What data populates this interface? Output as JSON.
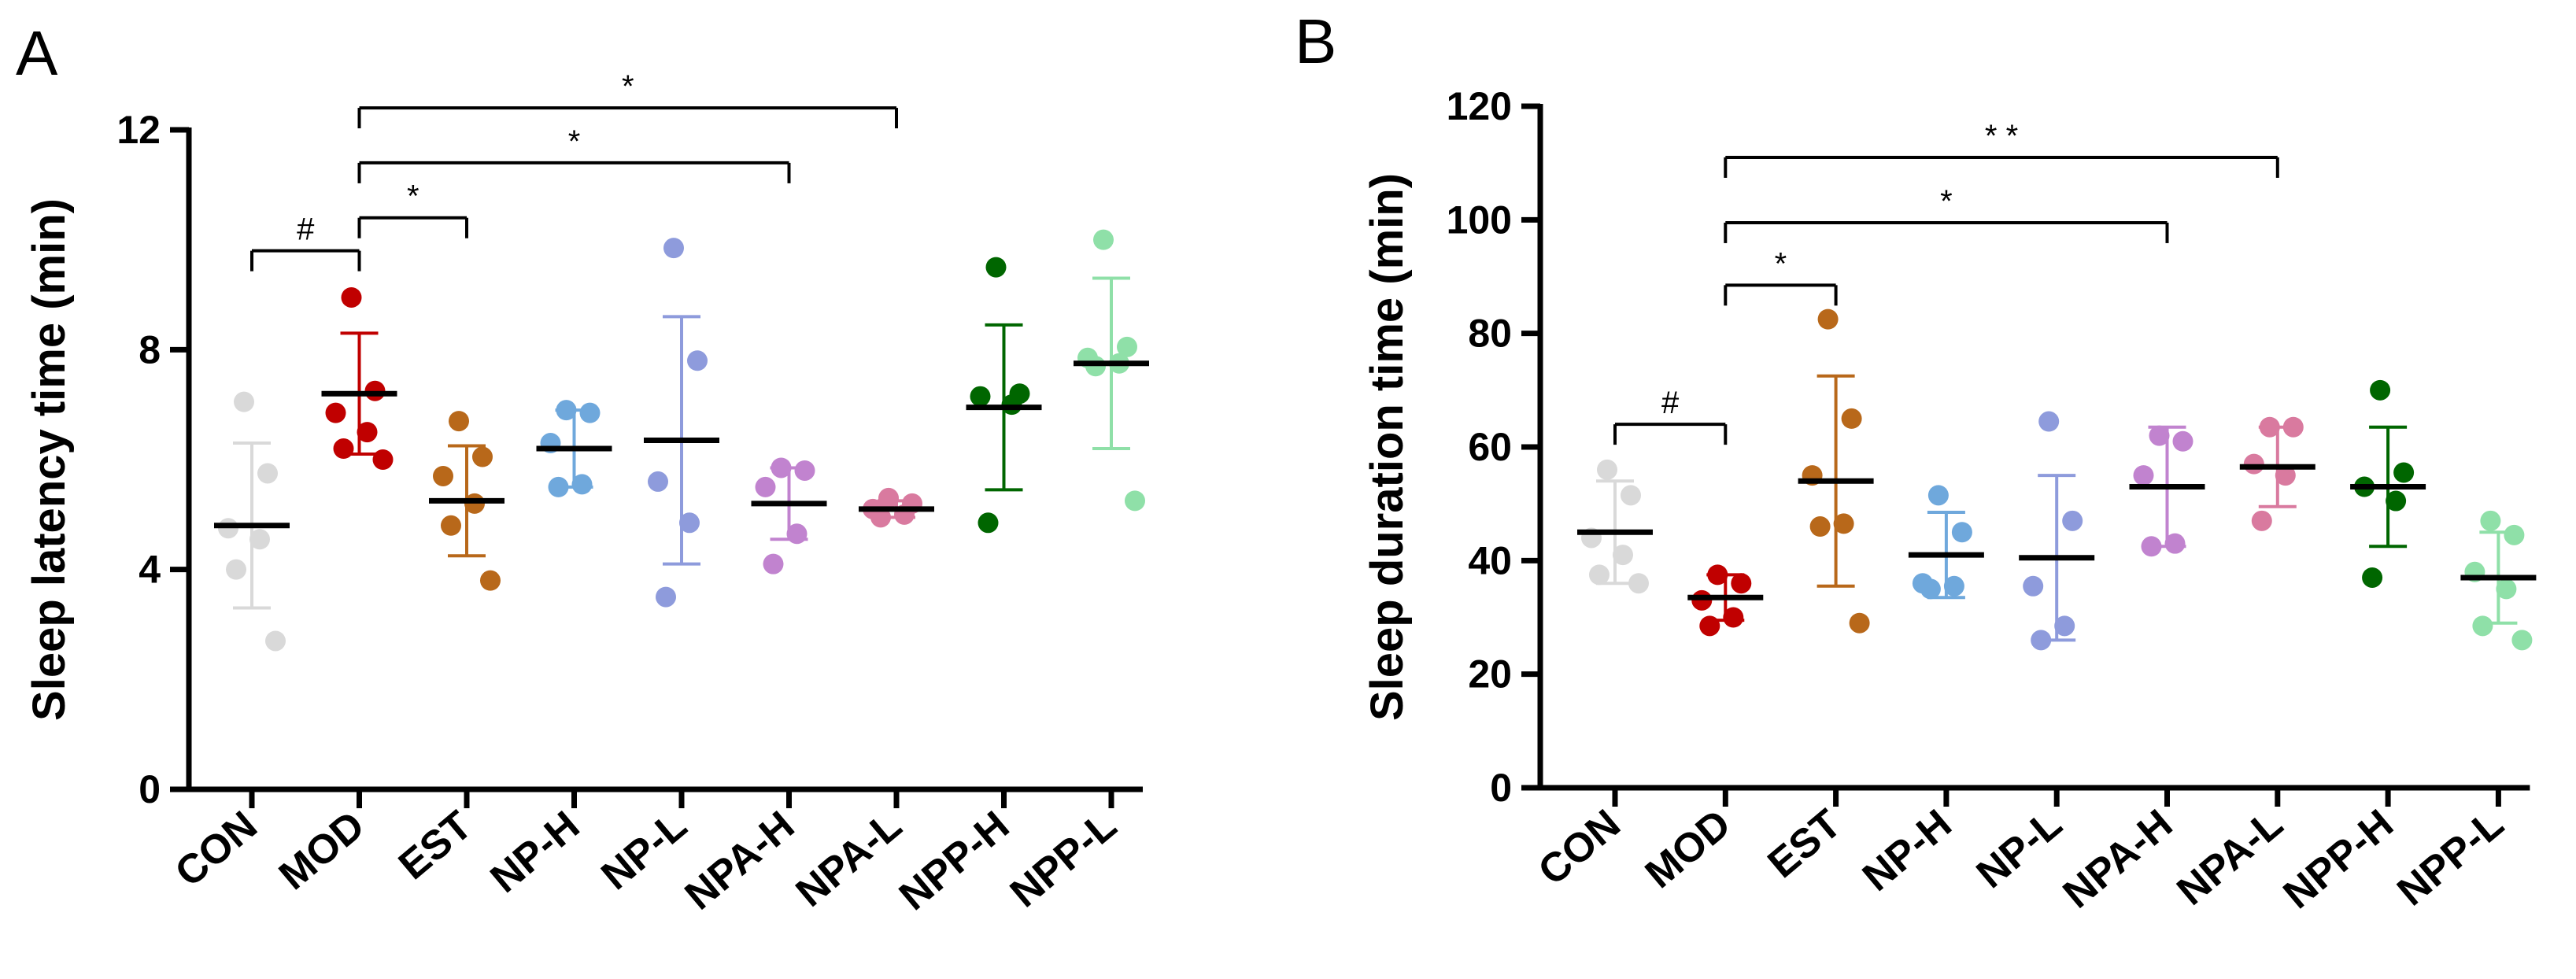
{
  "chart_data": [
    {
      "panel": "A",
      "type": "scatter",
      "ylabel": "Sleep latency time (min)",
      "ylim": [
        0,
        12
      ],
      "yticks": [
        0,
        4,
        8,
        12
      ],
      "categories": [
        "CON",
        "MOD",
        "EST",
        "NP-H",
        "NP-L",
        "NPA-H",
        "NPA-L",
        "NPP-H",
        "NPP-L"
      ],
      "colors": [
        "#d9d9d9",
        "#c00000",
        "#b8681a",
        "#6fa8dc",
        "#8e9bdc",
        "#c183cf",
        "#d97a9f",
        "#006600",
        "#8fe0a8"
      ],
      "groups": [
        {
          "mean": 4.8,
          "sd": 1.5,
          "points": [
            7.05,
            5.75,
            4.75,
            4.55,
            4.0,
            2.7
          ]
        },
        {
          "mean": 7.2,
          "sd": 1.1,
          "points": [
            8.95,
            7.25,
            6.85,
            6.5,
            6.2,
            6.0
          ]
        },
        {
          "mean": 5.25,
          "sd": 1.0,
          "points": [
            6.7,
            6.05,
            5.7,
            5.2,
            4.8,
            3.8
          ]
        },
        {
          "mean": 6.2,
          "sd": 0.7,
          "points": [
            6.9,
            6.85,
            6.3,
            5.55,
            5.5
          ]
        },
        {
          "mean": 6.35,
          "sd": 2.25,
          "points": [
            9.85,
            7.8,
            5.6,
            4.85,
            3.5
          ]
        },
        {
          "mean": 5.2,
          "sd": 0.65,
          "points": [
            5.85,
            5.8,
            5.5,
            4.65,
            4.1
          ]
        },
        {
          "mean": 5.1,
          "sd": 0.15,
          "points": [
            5.3,
            5.2,
            5.1,
            5.0,
            4.95
          ]
        },
        {
          "mean": 6.95,
          "sd": 1.5,
          "points": [
            9.5,
            7.2,
            7.15,
            7.0,
            4.85
          ]
        },
        {
          "mean": 7.75,
          "sd": 1.55,
          "points": [
            10.0,
            8.05,
            7.85,
            7.75,
            7.7,
            5.25
          ]
        }
      ],
      "comparisons": [
        {
          "from": 0,
          "to": 1,
          "label": "#",
          "y": 9.8
        },
        {
          "from": 1,
          "to": 2,
          "label": "*",
          "y": 10.4
        },
        {
          "from": 1,
          "to": 5,
          "label": "*",
          "y": 11.4
        },
        {
          "from": 1,
          "to": 6,
          "label": "*",
          "y": 12.4
        }
      ]
    },
    {
      "panel": "B",
      "type": "scatter",
      "ylabel": "Sleep duration time (min)",
      "ylim": [
        0,
        120
      ],
      "yticks": [
        0,
        20,
        40,
        60,
        80,
        100,
        120
      ],
      "categories": [
        "CON",
        "MOD",
        "EST",
        "NP-H",
        "NP-L",
        "NPA-H",
        "NPA-L",
        "NPP-H",
        "NPP-L"
      ],
      "colors": [
        "#d9d9d9",
        "#c00000",
        "#b8681a",
        "#6fa8dc",
        "#8e9bdc",
        "#c183cf",
        "#d97a9f",
        "#006600",
        "#8fe0a8"
      ],
      "groups": [
        {
          "mean": 45,
          "sd": 9,
          "points": [
            56,
            51.5,
            44,
            41,
            37.5,
            36
          ]
        },
        {
          "mean": 33.5,
          "sd": 4,
          "points": [
            37.5,
            36,
            33,
            30,
            28.5
          ]
        },
        {
          "mean": 54,
          "sd": 18.5,
          "points": [
            82.5,
            65,
            55,
            46.5,
            46,
            29
          ]
        },
        {
          "mean": 41,
          "sd": 7.5,
          "points": [
            51.5,
            45,
            36,
            35.5,
            35
          ]
        },
        {
          "mean": 40.5,
          "sd": 14.5,
          "points": [
            64.5,
            47,
            35.5,
            28.5,
            26
          ]
        },
        {
          "mean": 53,
          "sd": 10.5,
          "points": [
            62,
            61,
            55,
            43,
            42.5
          ]
        },
        {
          "mean": 56.5,
          "sd": 7,
          "points": [
            63.5,
            63.5,
            57,
            55,
            47
          ]
        },
        {
          "mean": 53,
          "sd": 10.5,
          "points": [
            70,
            55.5,
            53,
            50.5,
            37
          ]
        },
        {
          "mean": 37,
          "sd": 8,
          "points": [
            47,
            44.5,
            38,
            35,
            28.5,
            26
          ]
        }
      ],
      "comparisons": [
        {
          "from": 0,
          "to": 1,
          "label": "#",
          "y": 64
        },
        {
          "from": 1,
          "to": 2,
          "label": "*",
          "y": 88.5
        },
        {
          "from": 1,
          "to": 5,
          "label": "*",
          "y": 99.5
        },
        {
          "from": 1,
          "to": 6,
          "label": "* *",
          "y": 111
        }
      ]
    }
  ]
}
